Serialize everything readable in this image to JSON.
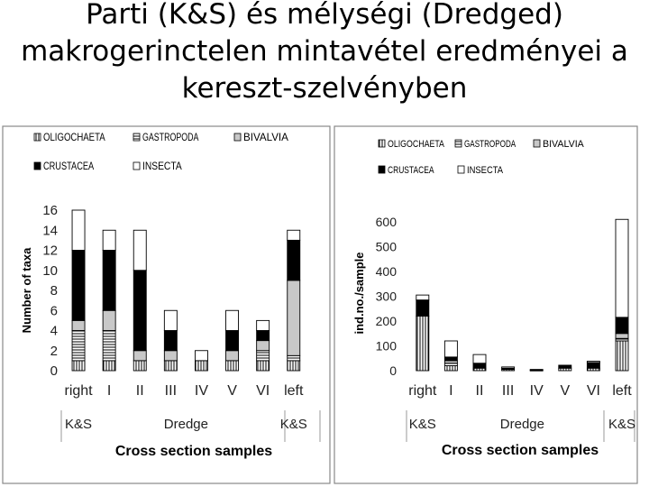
{
  "title_lines": [
    "Parti (K&S) és mélységi (Dredged)",
    "makrogerinctelen mintavétel eredményei a",
    "kereszt-szelvényben"
  ],
  "legend_items": [
    "OLIGOCHAETA",
    "GASTROPODA",
    "BIVALVIA",
    "CRUSTACEA",
    "INSECTA"
  ],
  "colors": {
    "oligochaeta": "#ffffff",
    "gastropoda": "#ffffff",
    "bivalvia": "#c8c8c8",
    "crustacea": "#000000",
    "insecta": "#ffffff"
  },
  "chart_data": [
    {
      "type": "bar",
      "stacked": true,
      "categories": [
        "right",
        "I",
        "II",
        "III",
        "IV",
        "V",
        "VI",
        "left"
      ],
      "group_labels": [
        {
          "label": "K&S",
          "span": [
            0,
            0
          ]
        },
        {
          "label": "Dredge",
          "span": [
            1,
            6
          ]
        },
        {
          "label": "K&S",
          "span": [
            7,
            7
          ]
        }
      ],
      "series": [
        {
          "name": "OLIGOCHAETA",
          "values": [
            1,
            1,
            1,
            1,
            1,
            1,
            1,
            1
          ]
        },
        {
          "name": "GASTROPODA",
          "values": [
            3,
            3,
            0,
            0,
            0,
            0,
            1,
            0.5
          ]
        },
        {
          "name": "BIVALVIA",
          "values": [
            1,
            2,
            1,
            1,
            0,
            1,
            1,
            7.5
          ]
        },
        {
          "name": "CRUSTACEA",
          "values": [
            7,
            6,
            8,
            2,
            0,
            2,
            1,
            4
          ]
        },
        {
          "name": "INSECTA",
          "values": [
            4,
            2,
            4,
            2,
            1,
            2,
            1,
            1
          ]
        }
      ],
      "yticks": [
        0,
        2,
        4,
        6,
        8,
        10,
        12,
        14,
        16
      ],
      "ylim": [
        0,
        16
      ],
      "ylabel": "Number of taxa",
      "xlabel": "Cross section samples",
      "legend": "top"
    },
    {
      "type": "bar",
      "stacked": true,
      "categories": [
        "right",
        "I",
        "II",
        "III",
        "IV",
        "V",
        "VI",
        "left"
      ],
      "group_labels": [
        {
          "label": "K&S",
          "span": [
            0,
            0
          ]
        },
        {
          "label": "Dredge",
          "span": [
            1,
            6
          ]
        },
        {
          "label": "K&S",
          "span": [
            7,
            7
          ]
        }
      ],
      "series": [
        {
          "name": "OLIGOCHAETA",
          "values": [
            220,
            20,
            10,
            5,
            2,
            10,
            10,
            120
          ]
        },
        {
          "name": "GASTROPODA",
          "values": [
            0,
            10,
            0,
            0,
            0,
            0,
            0,
            10
          ]
        },
        {
          "name": "BIVALVIA",
          "values": [
            0,
            10,
            0,
            0,
            0,
            0,
            0,
            20
          ]
        },
        {
          "name": "CRUSTACEA",
          "values": [
            65,
            15,
            20,
            5,
            0,
            12,
            23,
            65
          ]
        },
        {
          "name": "INSECTA",
          "values": [
            20,
            65,
            35,
            5,
            3,
            0,
            5,
            395
          ]
        }
      ],
      "yticks": [
        0,
        100,
        200,
        300,
        400,
        500,
        600
      ],
      "ylim": [
        0,
        600
      ],
      "ylabel": "ind.no./sample",
      "xlabel": "Cross section samples",
      "legend": "top"
    }
  ]
}
